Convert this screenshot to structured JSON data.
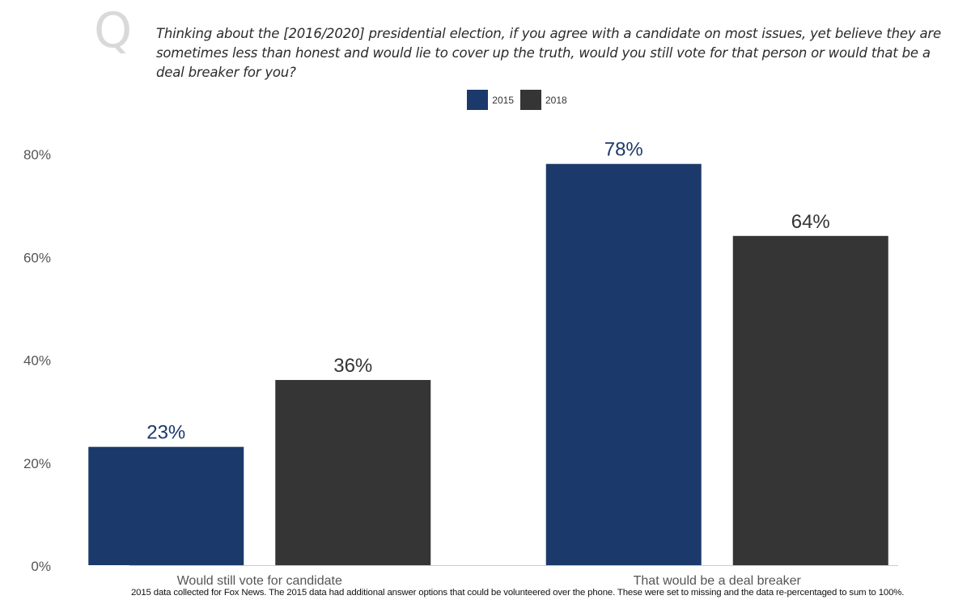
{
  "question_marker": "Q",
  "question": "Thinking about the [2016/2020] presidential election, if you agree with a candidate on most issues, yet believe they are sometimes less than honest and would lie to cover up the truth, would you still vote for that person or would that be a deal breaker for you?",
  "footnote": "2015 data collected for Fox News. The 2015 data had additional answer options that could be volunteered over the phone. These were set to missing and the data re-percentaged to sum to 100%.",
  "colors": {
    "series_2015": "#1b3a6b",
    "series_2018": "#353535",
    "label_2015": "#1b3a6b",
    "label_2018": "#333333",
    "axis_text": "#555555",
    "baseline": "#cccccc"
  },
  "chart_data": {
    "type": "bar",
    "categories": [
      "Would still vote for candidate",
      "That would be a deal breaker"
    ],
    "series": [
      {
        "name": "2015",
        "values": [
          23,
          78
        ],
        "labels": [
          "23%",
          "78%"
        ]
      },
      {
        "name": "2018",
        "values": [
          36,
          64
        ],
        "labels": [
          "36%",
          "64%"
        ]
      }
    ],
    "ylim": [
      0,
      80
    ],
    "yticks": [
      0,
      20,
      40,
      60,
      80
    ],
    "ytick_labels": [
      "0%",
      "20%",
      "40%",
      "60%",
      "80%"
    ],
    "grid": false,
    "legend_position": "top-center"
  }
}
